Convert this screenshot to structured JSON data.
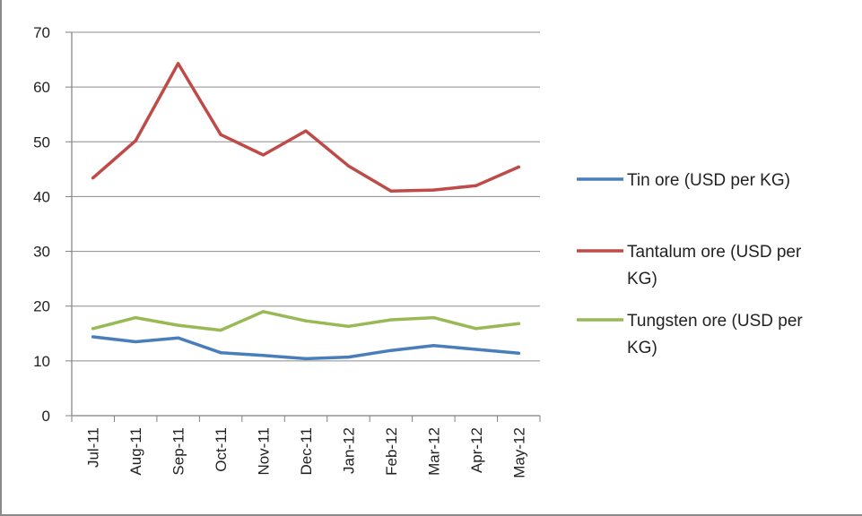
{
  "chart_data": {
    "type": "line",
    "categories": [
      "Jul-11",
      "Aug-11",
      "Sep-11",
      "Oct-11",
      "Nov-11",
      "Dec-11",
      "Jan-12",
      "Feb-12",
      "Mar-12",
      "Apr-12",
      "May-12"
    ],
    "series": [
      {
        "name": "Tin ore (USD per KG)",
        "color": "#4a7ebb",
        "values": [
          14.4,
          13.5,
          14.2,
          11.5,
          11.0,
          10.4,
          10.7,
          11.9,
          12.8,
          12.1,
          11.4
        ]
      },
      {
        "name": "Tantalum ore (USD per KG)",
        "color": "#be4b48",
        "values": [
          43.4,
          50.2,
          64.3,
          51.3,
          47.6,
          52.0,
          45.6,
          41.0,
          41.2,
          42.0,
          45.4
        ]
      },
      {
        "name": "Tungsten ore (USD per KG)",
        "color": "#98b954",
        "values": [
          15.9,
          17.9,
          16.5,
          15.6,
          19.0,
          17.3,
          16.3,
          17.5,
          17.9,
          15.9,
          16.8
        ]
      }
    ],
    "yticks": [
      "0",
      "10",
      "20",
      "30",
      "40",
      "50",
      "60",
      "70"
    ],
    "ylim": [
      0,
      70
    ],
    "title": "",
    "xlabel": "",
    "ylabel": "",
    "grid": true,
    "legend_position": "right",
    "legend_lines": [
      [
        "Tin ore (USD per KG)"
      ],
      [
        "Tantalum ore (USD per",
        "KG)"
      ],
      [
        "Tungsten ore (USD per",
        "KG)"
      ]
    ]
  }
}
